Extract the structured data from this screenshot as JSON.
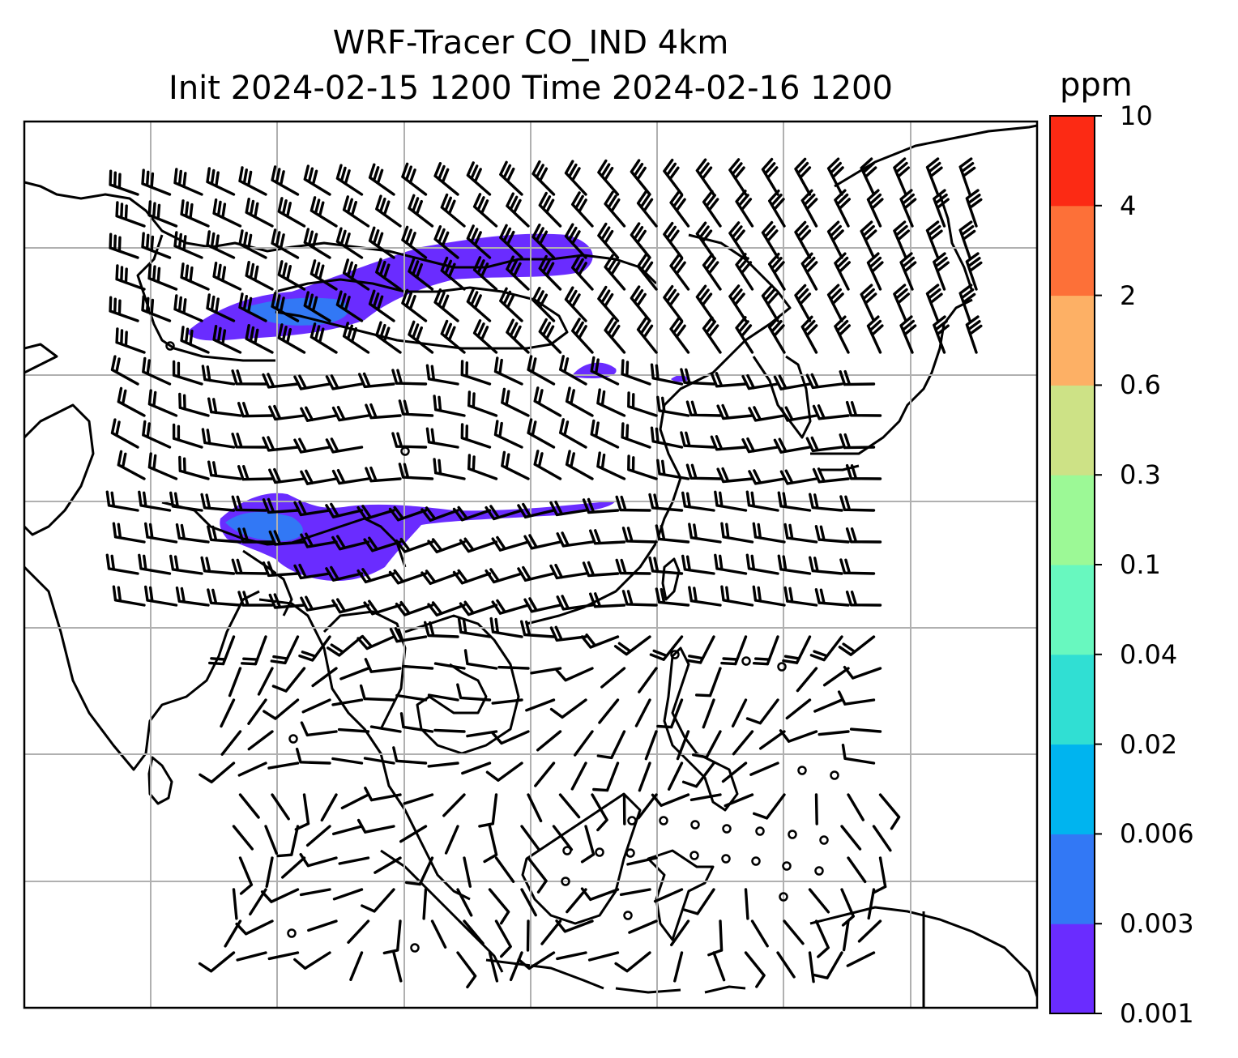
{
  "title": {
    "line1": "WRF-Tracer CO_IND 4km",
    "line2": "Init 2024-02-15 1200 Time 2024-02-16 1200"
  },
  "colorbar": {
    "unit": "ppm",
    "levels": [
      "0.001",
      "0.003",
      "0.006",
      "0.02",
      "0.04",
      "0.1",
      "0.3",
      "0.6",
      "2",
      "4",
      "10"
    ],
    "colors": [
      "#6a2cff",
      "#3278f5",
      "#00b4ef",
      "#30dfd3",
      "#68f8bf",
      "#9cf996",
      "#cde286",
      "#fdb065",
      "#fd7038",
      "#fc2a14"
    ]
  },
  "map": {
    "graticule": "lat/lon grid lines every 10 degrees",
    "tracer_plume_color": "#6a2cff",
    "plume_core_color": "#3278f5",
    "wind_barb_color": "#000000",
    "coastline_color": "#000000"
  }
}
